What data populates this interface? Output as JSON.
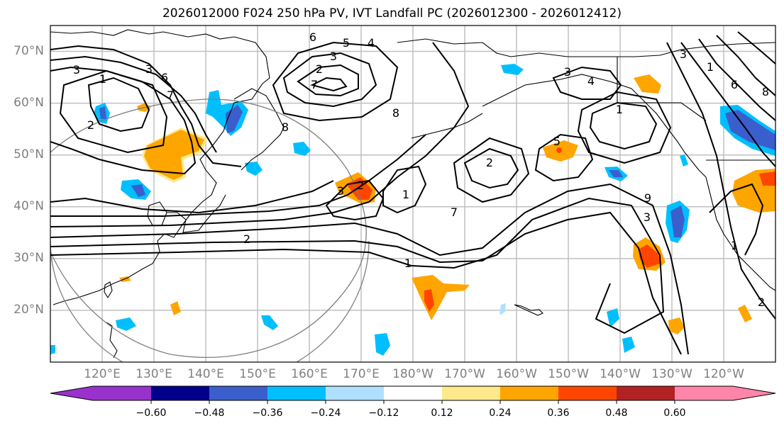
{
  "title": "2026012000 F024 250 hPa PV, IVT Landfall PC (2026012300 - 2026012412)",
  "map": {
    "projection": "PlateCarree",
    "lat_labels": [
      "70°N",
      "60°N",
      "50°N",
      "40°N",
      "30°N",
      "20°N"
    ],
    "lon_labels": [
      "120°E",
      "130°E",
      "140°E",
      "150°E",
      "160°E",
      "170°E",
      "180°W",
      "170°W",
      "160°W",
      "150°W",
      "140°W",
      "130°W",
      "120°W"
    ],
    "extent": {
      "lon": [
        110,
        250
      ],
      "lat": [
        10,
        75
      ]
    },
    "contour_labels": [
      "3",
      "1",
      "2",
      "3",
      "6",
      "7",
      "8",
      "6",
      "5",
      "4",
      "3",
      "2",
      "7",
      "8",
      "3",
      "4",
      "1",
      "5",
      "2",
      "2",
      "3",
      "1",
      "7",
      "9",
      "3",
      "2",
      "1",
      "1",
      "3",
      "1",
      "2",
      "6",
      "8"
    ],
    "grid_color": "#c0c0c0",
    "circle_color": "#808080"
  },
  "colorbar": {
    "ticks": [
      "−0.60",
      "−0.48",
      "−0.36",
      "−0.24",
      "−0.12",
      "0.12",
      "0.24",
      "0.36",
      "0.48",
      "0.60"
    ],
    "colors": [
      "#9932cc",
      "#00008b",
      "#3a5fcd",
      "#00bfff",
      "#b0e0ff",
      "#ffffff",
      "#ffe98a",
      "#ffa500",
      "#ff4500",
      "#b22222",
      "#ff85aa"
    ],
    "extend": "both"
  },
  "chart_data": {
    "type": "heatmap",
    "title": "2026012000 F024 250 hPa PV, IVT Landfall PC (2026012300 - 2026012412)",
    "xlabel": "",
    "ylabel": "",
    "xlim": [
      110,
      250
    ],
    "ylim": [
      10,
      75
    ],
    "color_levels": [
      -0.6,
      -0.48,
      -0.36,
      -0.24,
      -0.12,
      0.12,
      0.24,
      0.36,
      0.48,
      0.6
    ],
    "contour_field": "250 hPa PV",
    "grid": true
  }
}
